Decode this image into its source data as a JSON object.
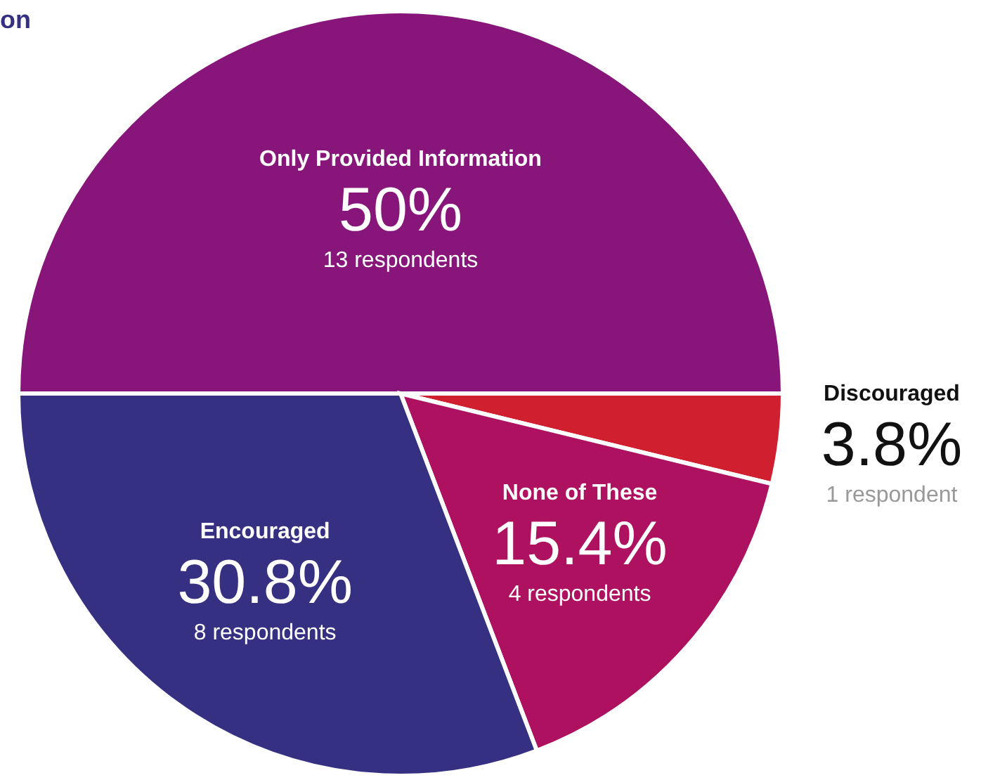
{
  "chart_data": {
    "type": "pie",
    "title": "on",
    "categories": [
      "Only Provided Information",
      "Discouraged",
      "None of These",
      "Encouraged"
    ],
    "values": [
      50,
      3.8,
      15.4,
      30.8
    ],
    "colors": [
      "#87157a",
      "#d0202f",
      "#ae1160",
      "#363083"
    ],
    "value_labels": [
      "50%",
      "3.8%",
      "15.4%",
      "30.8%"
    ],
    "annotations": [
      "13 respondents",
      "1 respondent",
      "4 respondents",
      "8 respondents"
    ]
  }
}
